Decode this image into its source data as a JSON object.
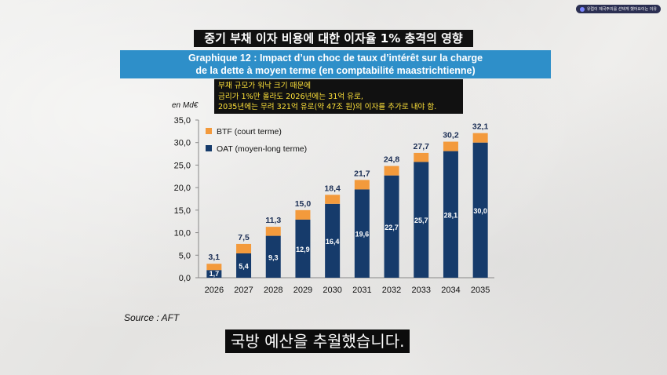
{
  "channel": {
    "label": "유럽이 제국주의를 선택게 했어요이는 이유"
  },
  "title_ko": "중기 부채 이자 비용에 대한 이자율 1% 충격의 영향",
  "header_fr": {
    "line1": "Graphique 12 : Impact d’un choc de taux d’intérêt sur la charge",
    "line2": "de la dette à moyen terme (en comptabilité maastrichtienne)"
  },
  "annotation": {
    "lines": [
      "부채 규모가 워낙 크기 때문에",
      "금리가 1%만 올라도 2026년에는 31억 유로,",
      "2035년에는 무려 321억 유로(약 47조 원)의 이자를 추가로 내야 함."
    ]
  },
  "source": "Source : AFT",
  "subtitle": "국방 예산을 추월했습니다.",
  "colors": {
    "btf": "#f39a3c",
    "oat": "#163b6b",
    "header_blue": "#2e8fc9",
    "annotation_text": "#ffe23a"
  },
  "chart_data": {
    "type": "bar",
    "stacked": true,
    "ylabel": "en Md€",
    "ylim": [
      0,
      35
    ],
    "yticks": [
      "0,0",
      "5,0",
      "10,0",
      "15,0",
      "20,0",
      "25,0",
      "30,0",
      "35,0"
    ],
    "categories": [
      "2026",
      "2027",
      "2028",
      "2029",
      "2030",
      "2031",
      "2032",
      "2033",
      "2034",
      "2035"
    ],
    "series": [
      {
        "name": "OAT (moyen-long terme)",
        "values": [
          1.7,
          5.4,
          9.3,
          12.9,
          16.4,
          19.6,
          22.7,
          25.7,
          28.1,
          30.0
        ],
        "labels": [
          "1,7",
          "5,4",
          "9,3",
          "12,9",
          "16,4",
          "19,6",
          "22,7",
          "25,7",
          "28,1",
          "30,0"
        ]
      },
      {
        "name": "BTF (court terme)",
        "values": [
          1.4,
          2.1,
          2.0,
          2.1,
          2.0,
          2.1,
          2.1,
          2.0,
          2.1,
          2.1
        ]
      }
    ],
    "totals": [
      3.1,
      7.5,
      11.3,
      15.0,
      18.4,
      21.7,
      24.8,
      27.7,
      30.2,
      32.1
    ],
    "total_labels": [
      "3,1",
      "7,5",
      "11,3",
      "15,0",
      "18,4",
      "21,7",
      "24,8",
      "27,7",
      "30,2",
      "32,1"
    ],
    "legend_position": "top-left"
  }
}
